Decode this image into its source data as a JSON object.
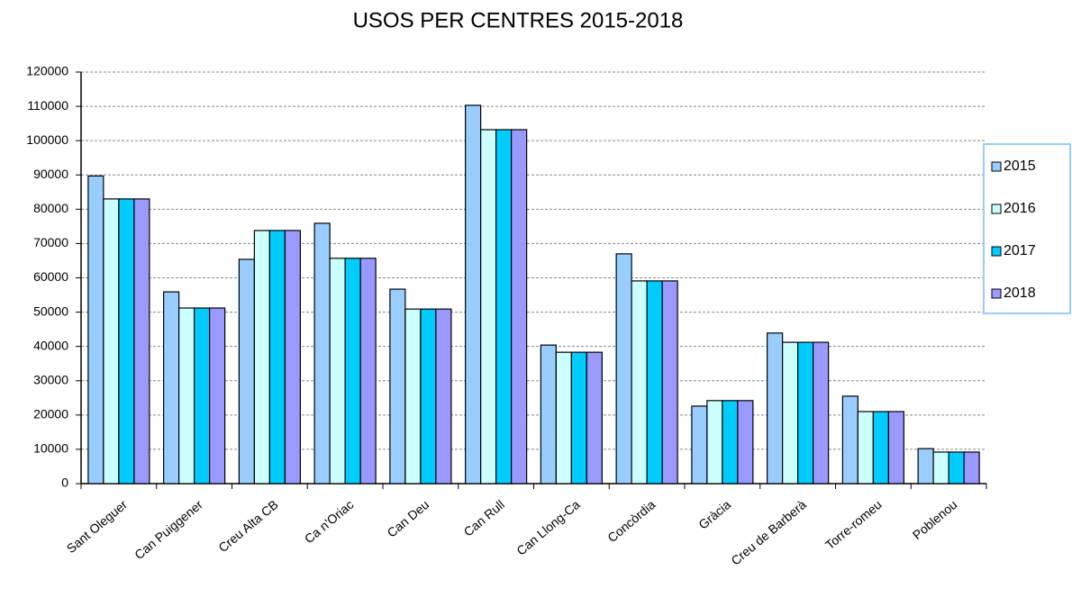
{
  "chart_data": {
    "type": "bar",
    "title": "USOS PER CENTRES 2015-2018",
    "categories": [
      "Sant Oleguer",
      "Can Puiggener",
      "Creu Alta CB",
      "Ca n'Oriac",
      "Can Deu",
      "Can Rull",
      "Can Llong-Ca",
      "Concòrdia",
      "Gràcia",
      "Creu de Barberà",
      "Torre-romeu",
      "Poblenou"
    ],
    "series": [
      {
        "name": "2015",
        "color": "#99ccff",
        "values": [
          89700,
          55900,
          65400,
          75900,
          56700,
          110300,
          40400,
          67000,
          22600,
          43900,
          25500,
          10200
        ]
      },
      {
        "name": "2016",
        "color": "#ccffff",
        "values": [
          83000,
          51200,
          73800,
          65700,
          50900,
          103200,
          38300,
          59100,
          24200,
          41200,
          21000,
          9200
        ]
      },
      {
        "name": "2017",
        "color": "#00ccff",
        "values": [
          83000,
          51200,
          73800,
          65700,
          50900,
          103200,
          38300,
          59100,
          24200,
          41200,
          21000,
          9200
        ]
      },
      {
        "name": "2018",
        "color": "#9999ff",
        "values": [
          83000,
          51200,
          73800,
          65700,
          50900,
          103200,
          38300,
          59100,
          24200,
          41200,
          21000,
          9200
        ]
      }
    ],
    "ylim": [
      0,
      120000
    ],
    "yticks": [
      0,
      10000,
      20000,
      30000,
      40000,
      50000,
      60000,
      70000,
      80000,
      90000,
      100000,
      110000,
      120000
    ],
    "grid": true,
    "legend": "right"
  }
}
